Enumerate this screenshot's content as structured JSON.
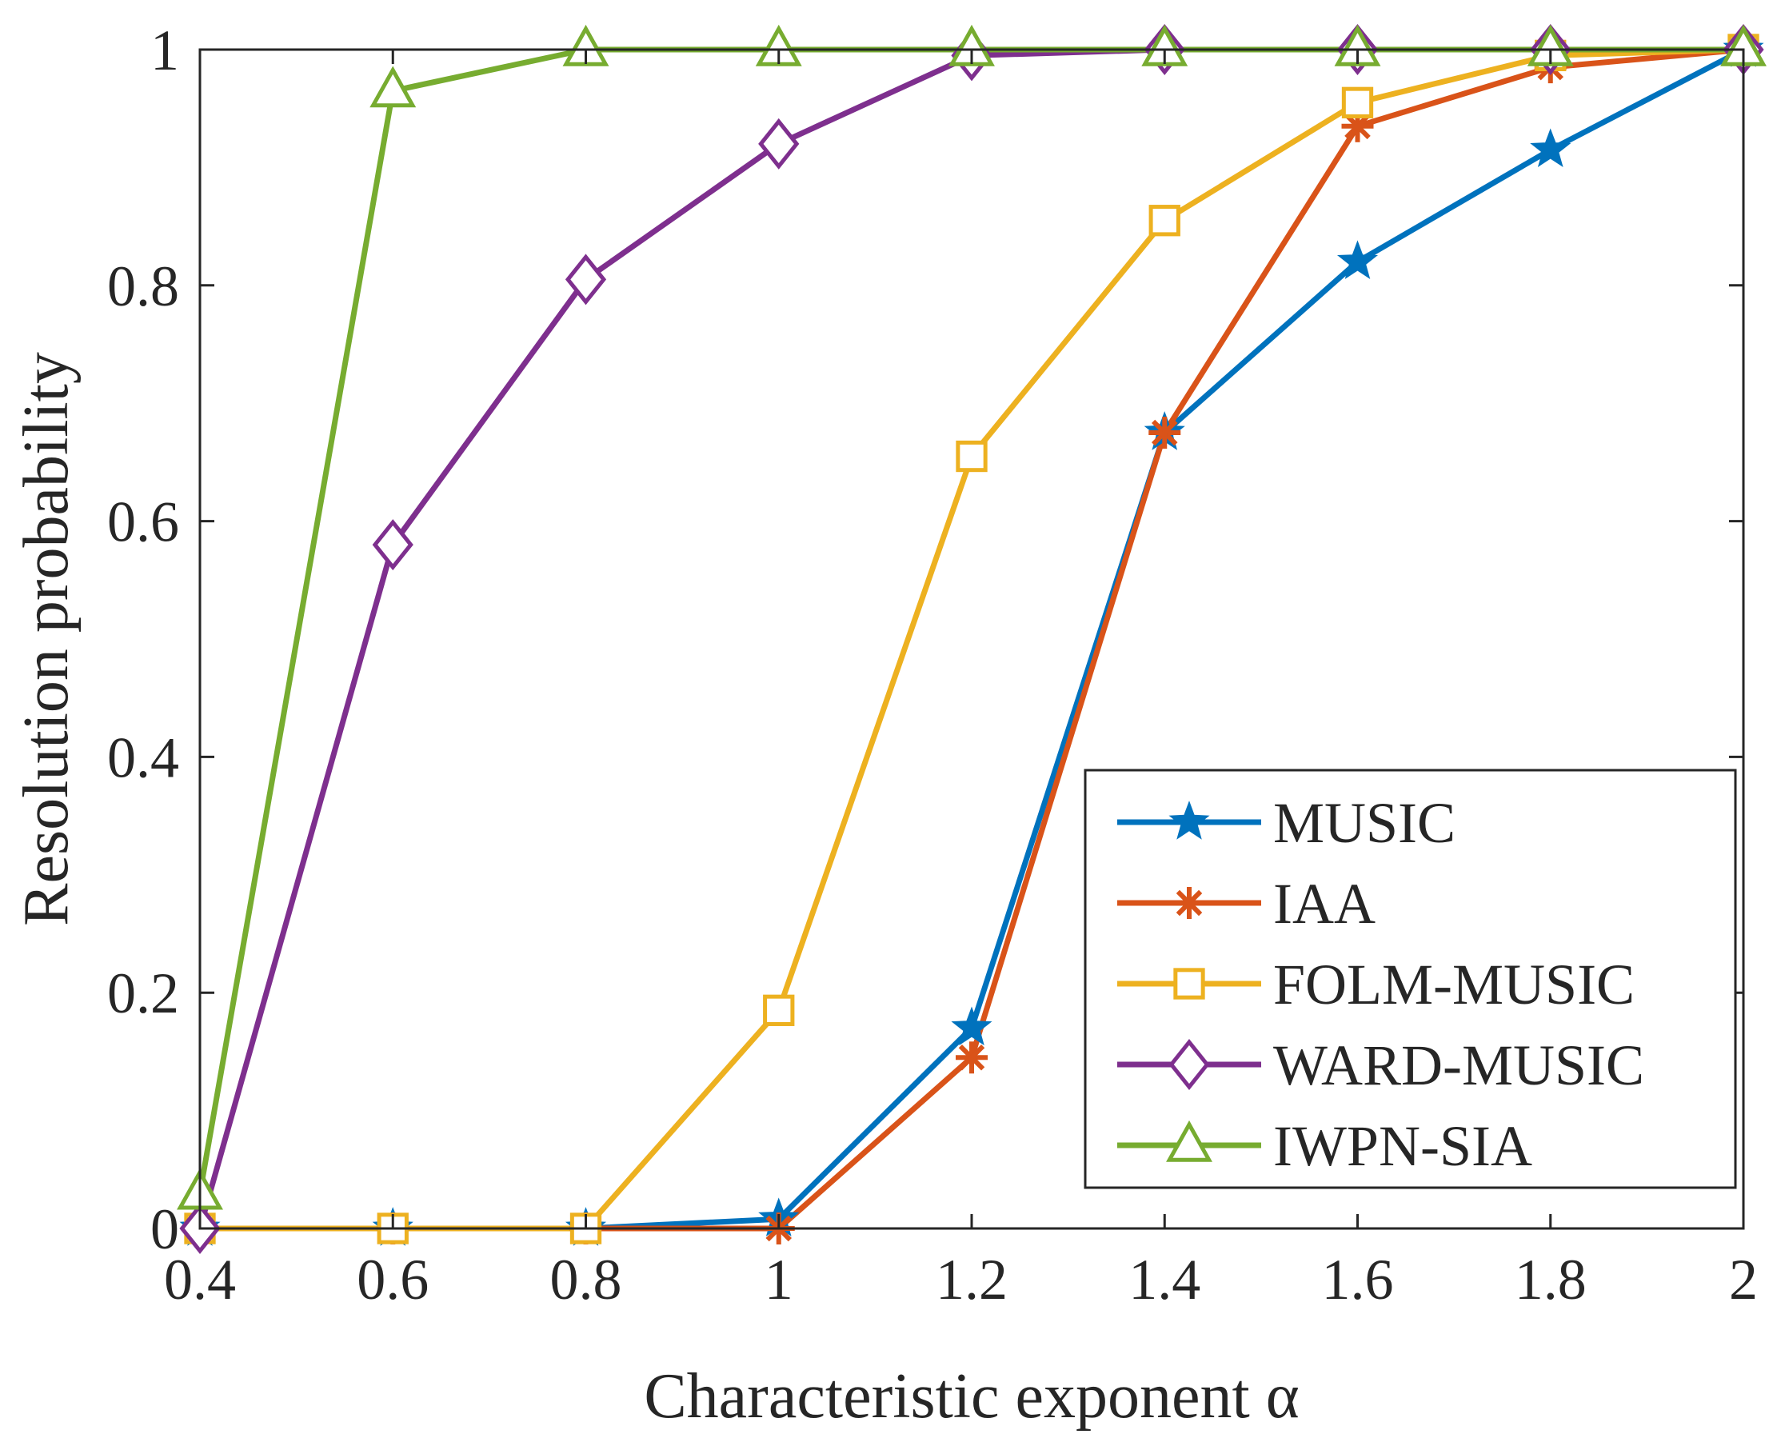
{
  "chart_data": {
    "type": "line",
    "title": "",
    "xlabel": "Characteristic exponent α",
    "ylabel": "Resolution probability",
    "x": [
      0.4,
      0.6,
      0.8,
      1.0,
      1.2,
      1.4,
      1.6,
      1.8,
      2.0
    ],
    "xticks": [
      "0.4",
      "0.6",
      "0.8",
      "1",
      "1.2",
      "1.4",
      "1.6",
      "1.8",
      "2"
    ],
    "yticks": [
      "0",
      "0.2",
      "0.4",
      "0.6",
      "0.8",
      "1"
    ],
    "xlim": [
      0.4,
      2.0
    ],
    "ylim": [
      0,
      1
    ],
    "grid": false,
    "legend_position": "bottom-right",
    "series": [
      {
        "name": "MUSIC",
        "color": "#0072BD",
        "marker": "star",
        "values": [
          0.0,
          0.0,
          0.0,
          0.008,
          0.17,
          0.675,
          0.82,
          0.915,
          1.0
        ]
      },
      {
        "name": "IAA",
        "color": "#D95319",
        "marker": "asterisk",
        "values": [
          0.0,
          0.0,
          0.0,
          0.0,
          0.145,
          0.675,
          0.935,
          0.985,
          1.0
        ]
      },
      {
        "name": "FOLM-MUSIC",
        "color": "#EDB120",
        "marker": "square",
        "values": [
          0.0,
          0.0,
          0.0,
          0.185,
          0.655,
          0.855,
          0.955,
          0.995,
          1.0
        ]
      },
      {
        "name": "WARD-MUSIC",
        "color": "#7E2F8E",
        "marker": "diamond",
        "values": [
          0.0,
          0.58,
          0.805,
          0.92,
          0.995,
          1.0,
          1.0,
          1.0,
          1.0
        ]
      },
      {
        "name": "IWPN-SIA",
        "color": "#77AC30",
        "marker": "triangle",
        "values": [
          0.03,
          0.965,
          1.0,
          1.0,
          1.0,
          1.0,
          1.0,
          1.0,
          1.0
        ]
      }
    ]
  }
}
